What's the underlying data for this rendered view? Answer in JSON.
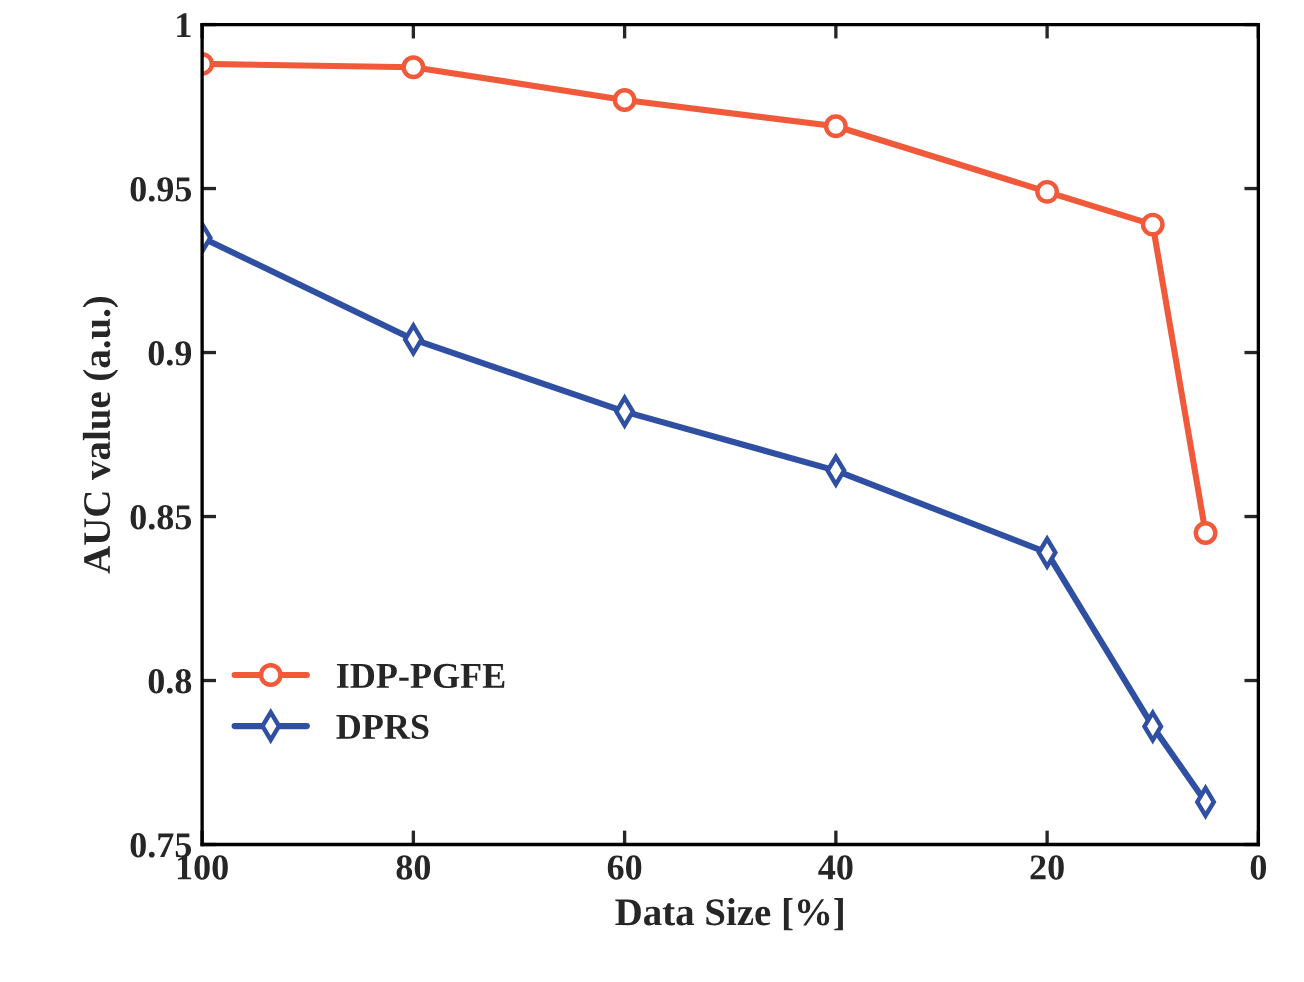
{
  "chart_data": {
    "type": "line",
    "xlabel": "Data Size [%]",
    "ylabel": "AUC value (a.u.)",
    "x": [
      100,
      80,
      60,
      40,
      20,
      10,
      5
    ],
    "series": [
      {
        "name": "IDP-PGFE",
        "color": "#f05a3a",
        "marker": "circle",
        "values": [
          0.988,
          0.987,
          0.977,
          0.969,
          0.949,
          0.939,
          0.845
        ]
      },
      {
        "name": "DPRS",
        "color": "#2f4fa2",
        "marker": "diamond",
        "values": [
          0.935,
          0.904,
          0.882,
          0.864,
          0.839,
          0.786,
          0.763
        ]
      }
    ],
    "xlim": [
      100,
      0
    ],
    "xticks": [
      100,
      80,
      60,
      40,
      20,
      0
    ],
    "ylim": [
      0.75,
      1
    ],
    "yticks": [
      0.75,
      0.8,
      0.85,
      0.9,
      0.95,
      1
    ],
    "grid": false,
    "legend": "bottom left",
    "line_style": "solid"
  }
}
